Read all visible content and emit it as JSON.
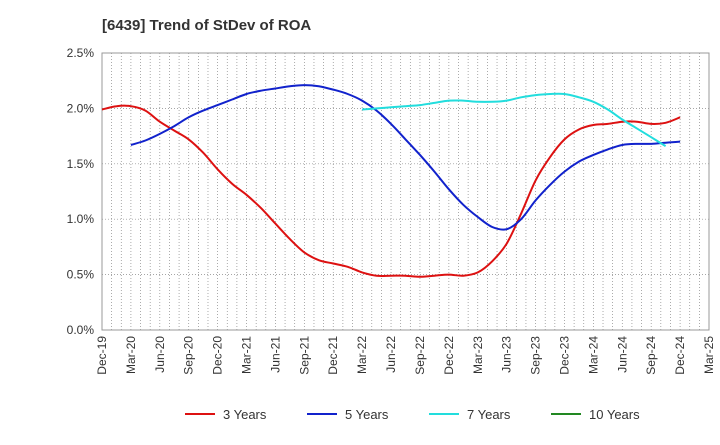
{
  "chart_data": {
    "type": "line",
    "title": "[6439]  Trend of StDev of ROA",
    "xlabel": "",
    "ylabel": "",
    "ylim": [
      0,
      2.5
    ],
    "yticks": [
      "0.0%",
      "0.5%",
      "1.0%",
      "1.5%",
      "2.0%",
      "2.5%"
    ],
    "ytick_values": [
      0,
      0.5,
      1.0,
      1.5,
      2.0,
      2.5
    ],
    "categories": [
      "Dec-19",
      "Mar-20",
      "Jun-20",
      "Sep-20",
      "Dec-20",
      "Mar-21",
      "Jun-21",
      "Sep-21",
      "Dec-21",
      "Mar-22",
      "Jun-22",
      "Sep-22",
      "Dec-22",
      "Mar-23",
      "Jun-23",
      "Sep-23",
      "Dec-23",
      "Mar-24",
      "Jun-24",
      "Sep-24",
      "Dec-24",
      "Mar-25"
    ],
    "grid": true,
    "legend_position": "bottom",
    "series": [
      {
        "name": "3 Years",
        "color": "#dd1111",
        "points": [
          [
            0,
            1.99
          ],
          [
            0.5,
            2.02
          ],
          [
            1,
            2.02
          ],
          [
            1.5,
            1.98
          ],
          [
            2,
            1.88
          ],
          [
            2.5,
            1.8
          ],
          [
            3,
            1.72
          ],
          [
            3.5,
            1.6
          ],
          [
            4,
            1.45
          ],
          [
            4.5,
            1.32
          ],
          [
            5,
            1.22
          ],
          [
            5.5,
            1.1
          ],
          [
            6,
            0.96
          ],
          [
            6.5,
            0.82
          ],
          [
            7,
            0.7
          ],
          [
            7.5,
            0.63
          ],
          [
            8,
            0.6
          ],
          [
            8.5,
            0.57
          ],
          [
            9,
            0.52
          ],
          [
            9.5,
            0.49
          ],
          [
            10,
            0.49
          ],
          [
            10.5,
            0.49
          ],
          [
            11,
            0.48
          ],
          [
            11.5,
            0.49
          ],
          [
            12,
            0.5
          ],
          [
            12.5,
            0.49
          ],
          [
            13,
            0.52
          ],
          [
            13.5,
            0.62
          ],
          [
            14,
            0.78
          ],
          [
            14.5,
            1.05
          ],
          [
            15,
            1.35
          ],
          [
            15.5,
            1.56
          ],
          [
            16,
            1.72
          ],
          [
            16.5,
            1.81
          ],
          [
            17,
            1.85
          ],
          [
            17.5,
            1.86
          ],
          [
            18,
            1.88
          ],
          [
            18.5,
            1.88
          ],
          [
            19,
            1.86
          ],
          [
            19.5,
            1.87
          ],
          [
            20,
            1.92
          ]
        ]
      },
      {
        "name": "5 Years",
        "color": "#1122cc",
        "points": [
          [
            1,
            1.67
          ],
          [
            1.5,
            1.71
          ],
          [
            2,
            1.77
          ],
          [
            2.5,
            1.84
          ],
          [
            3,
            1.92
          ],
          [
            3.5,
            1.98
          ],
          [
            4,
            2.03
          ],
          [
            4.5,
            2.08
          ],
          [
            5,
            2.13
          ],
          [
            5.5,
            2.16
          ],
          [
            6,
            2.18
          ],
          [
            6.5,
            2.2
          ],
          [
            7,
            2.21
          ],
          [
            7.5,
            2.2
          ],
          [
            8,
            2.17
          ],
          [
            8.5,
            2.13
          ],
          [
            9,
            2.07
          ],
          [
            9.5,
            1.98
          ],
          [
            10,
            1.86
          ],
          [
            10.5,
            1.72
          ],
          [
            11,
            1.58
          ],
          [
            11.5,
            1.43
          ],
          [
            12,
            1.27
          ],
          [
            12.5,
            1.13
          ],
          [
            13,
            1.02
          ],
          [
            13.5,
            0.93
          ],
          [
            14,
            0.91
          ],
          [
            14.5,
            1.0
          ],
          [
            15,
            1.17
          ],
          [
            15.5,
            1.31
          ],
          [
            16,
            1.43
          ],
          [
            16.5,
            1.52
          ],
          [
            17,
            1.58
          ],
          [
            17.5,
            1.63
          ],
          [
            18,
            1.67
          ],
          [
            18.5,
            1.68
          ],
          [
            19,
            1.68
          ],
          [
            19.5,
            1.69
          ],
          [
            20,
            1.7
          ]
        ]
      },
      {
        "name": "7 Years",
        "color": "#22dddd",
        "points": [
          [
            9,
            1.99
          ],
          [
            9.5,
            2.0
          ],
          [
            10,
            2.01
          ],
          [
            10.5,
            2.02
          ],
          [
            11,
            2.03
          ],
          [
            11.5,
            2.05
          ],
          [
            12,
            2.07
          ],
          [
            12.5,
            2.07
          ],
          [
            13,
            2.06
          ],
          [
            13.5,
            2.06
          ],
          [
            14,
            2.07
          ],
          [
            14.5,
            2.1
          ],
          [
            15,
            2.12
          ],
          [
            15.5,
            2.13
          ],
          [
            16,
            2.13
          ],
          [
            16.5,
            2.1
          ],
          [
            17,
            2.06
          ],
          [
            17.5,
            1.99
          ],
          [
            18,
            1.9
          ],
          [
            18.5,
            1.82
          ],
          [
            19,
            1.74
          ],
          [
            19.5,
            1.66
          ]
        ]
      },
      {
        "name": "10 Years",
        "color": "#228822",
        "points": []
      }
    ]
  }
}
